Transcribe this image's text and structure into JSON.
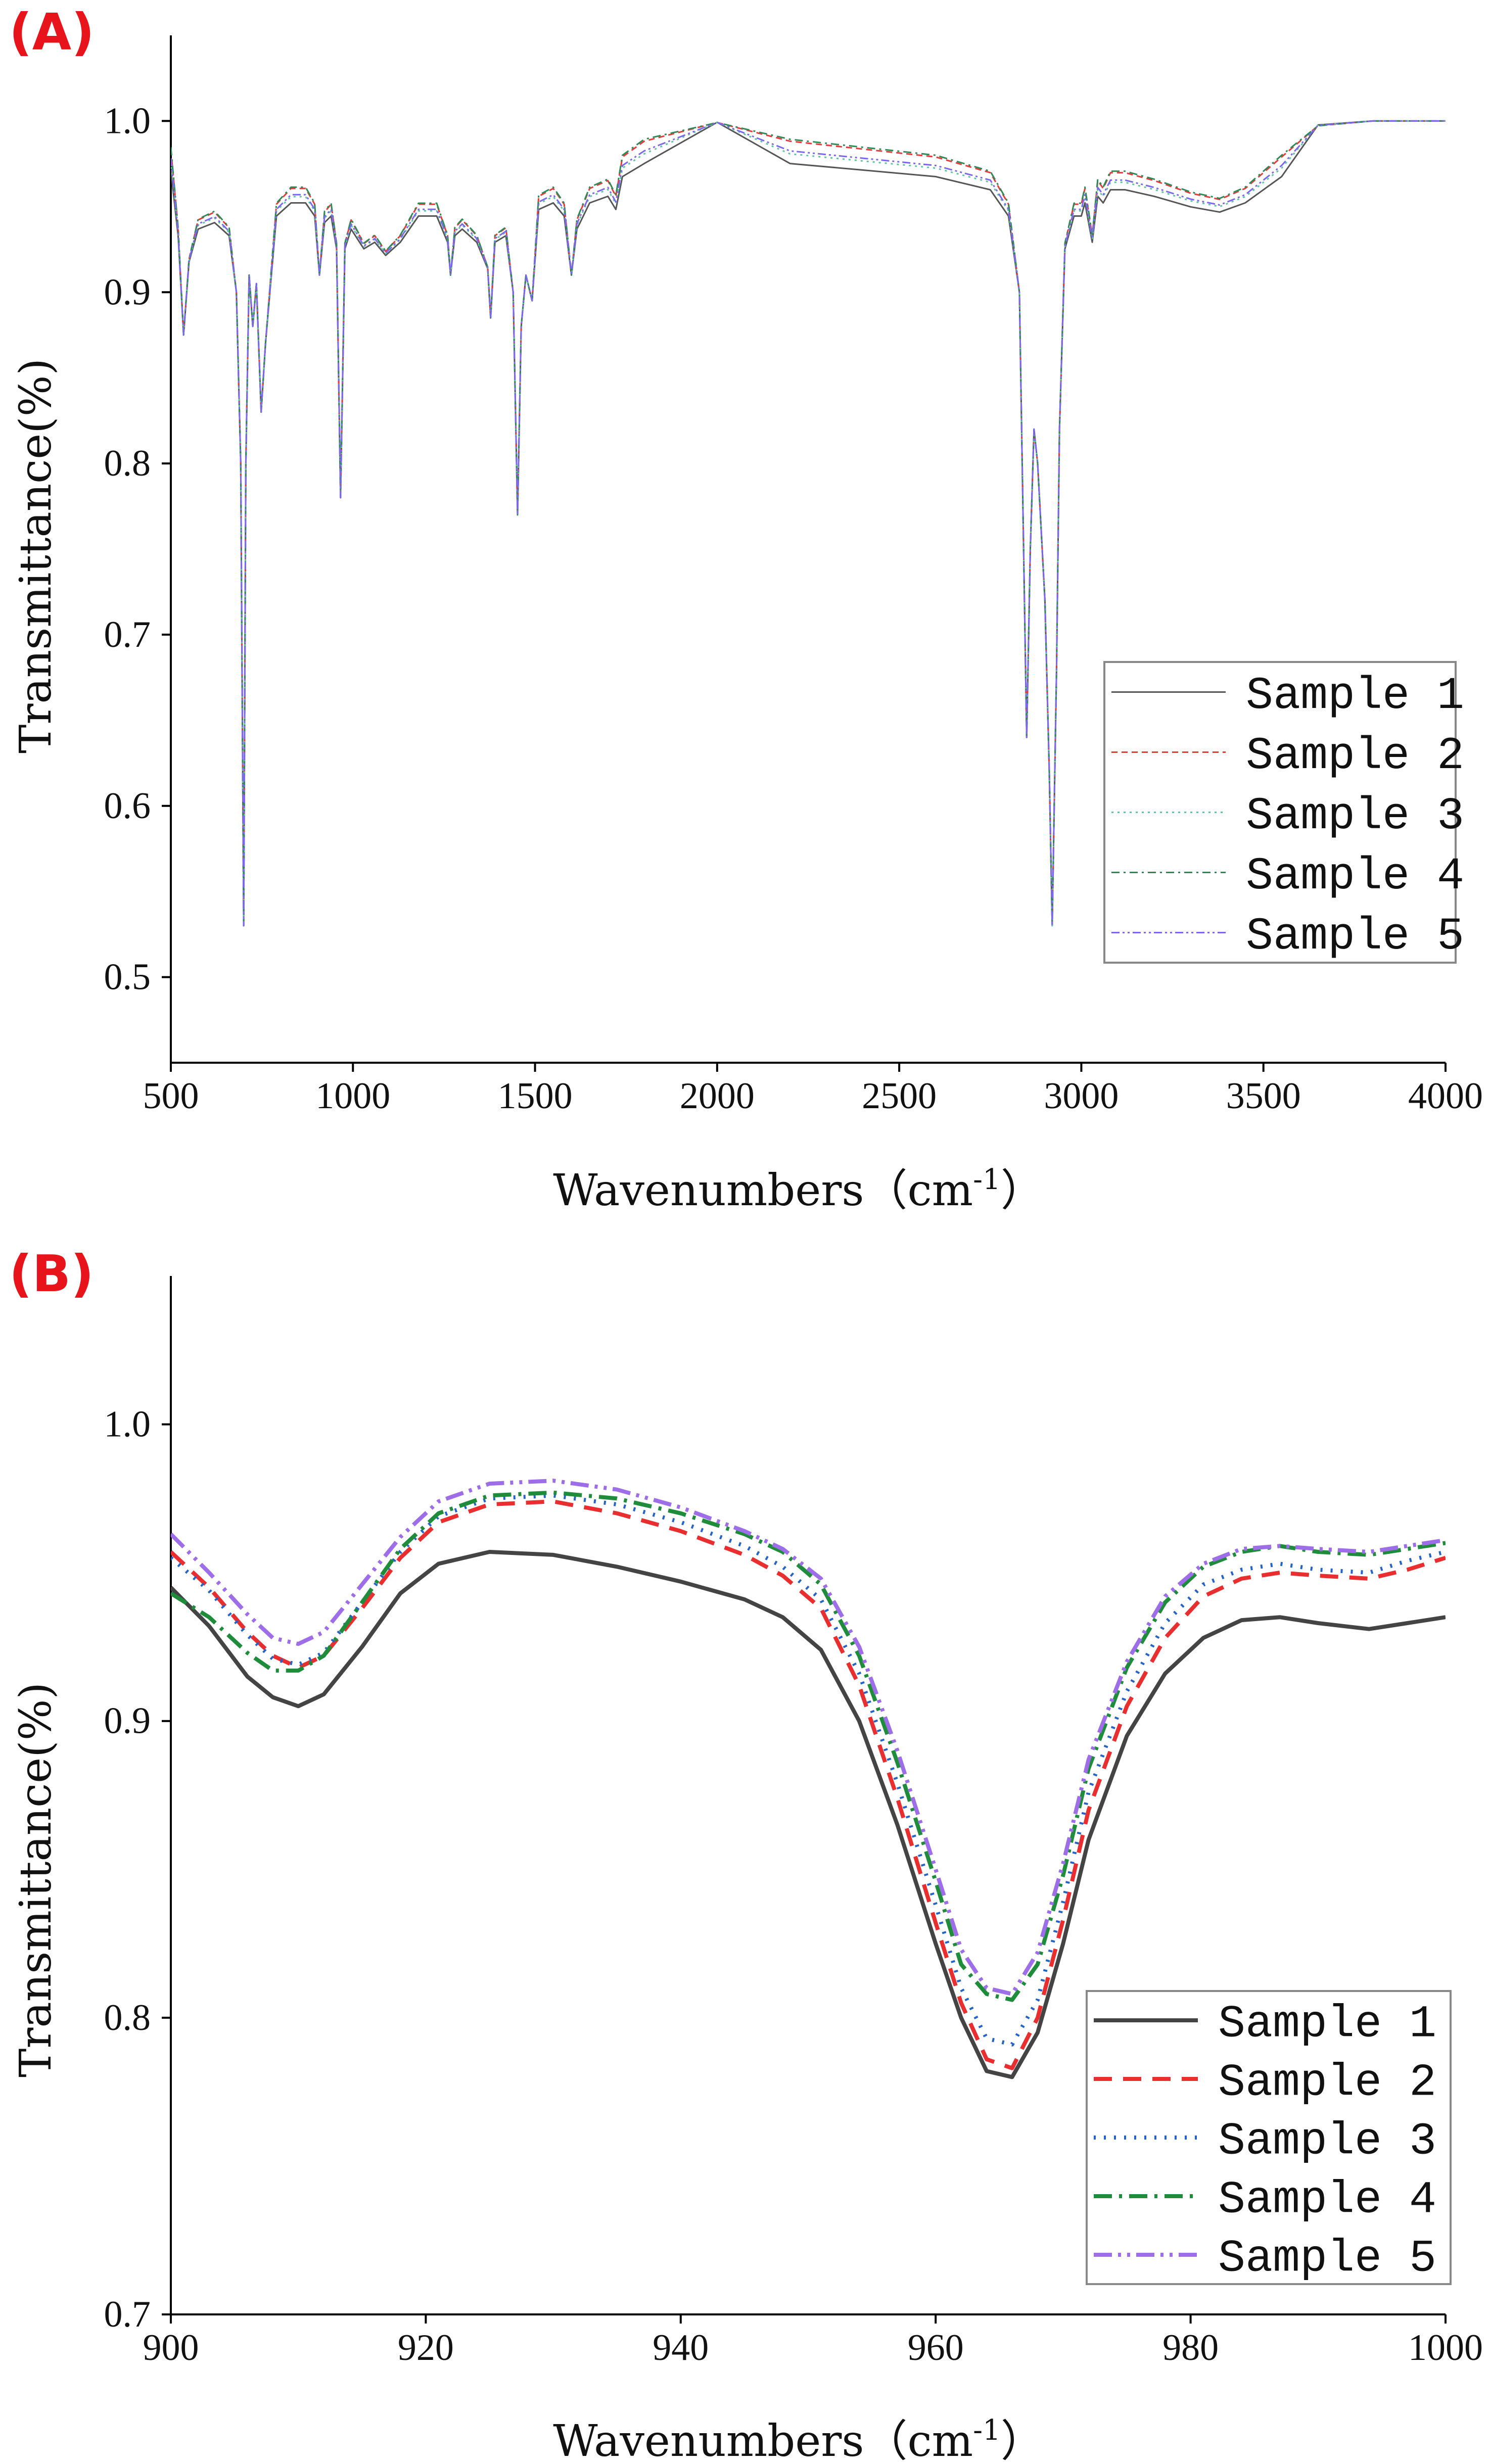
{
  "chart_data": [
    {
      "type": "line",
      "panel_label": "(A)",
      "xlabel_main": "Wavenumbers（cm",
      "xlabel_sup": "-1",
      "xlabel_close": "）",
      "ylabel": "Transmittance(%)",
      "xlim": [
        500,
        4000
      ],
      "ylim": [
        0.45,
        1.05
      ],
      "xticks": [
        "500",
        "1000",
        "1500",
        "2000",
        "2500",
        "3000",
        "3500",
        "4000"
      ],
      "xtick_values": [
        500,
        1000,
        1500,
        2000,
        2500,
        3000,
        3500,
        4000
      ],
      "yticks": [
        "0.5",
        "0.6",
        "0.7",
        "0.8",
        "0.9",
        "1.0"
      ],
      "ytick_values": [
        0.5,
        0.6,
        0.7,
        0.8,
        0.9,
        1.0
      ],
      "legend_position": "bottom-right",
      "series": [
        {
          "name": "Sample 1",
          "color": "#555555",
          "dash": "",
          "offset": -0.035
        },
        {
          "name": "Sample 2",
          "color": "#e83a3a",
          "dash": "12,8",
          "offset": -0.012
        },
        {
          "name": "Sample 3",
          "color": "#5cc6a0",
          "dash": "4,8",
          "offset": -0.025
        },
        {
          "name": "Sample 4",
          "color": "#2e8b57",
          "dash": "16,8,4,8",
          "offset": -0.01
        },
        {
          "name": "Sample 5",
          "color": "#7b68ee",
          "dash": "16,6,4,6,4,6",
          "offset": -0.022
        }
      ],
      "base_curve": [
        [
          500,
          0.99
        ],
        [
          520,
          0.94
        ],
        [
          535,
          0.875
        ],
        [
          550,
          0.92
        ],
        [
          575,
          0.945
        ],
        [
          620,
          0.95
        ],
        [
          660,
          0.94
        ],
        [
          680,
          0.9
        ],
        [
          692,
          0.8
        ],
        [
          700,
          0.53
        ],
        [
          706,
          0.8
        ],
        [
          715,
          0.91
        ],
        [
          725,
          0.88
        ],
        [
          735,
          0.905
        ],
        [
          748,
          0.83
        ],
        [
          760,
          0.87
        ],
        [
          790,
          0.955
        ],
        [
          830,
          0.965
        ],
        [
          870,
          0.965
        ],
        [
          895,
          0.955
        ],
        [
          908,
          0.91
        ],
        [
          922,
          0.95
        ],
        [
          940,
          0.955
        ],
        [
          955,
          0.93
        ],
        [
          966,
          0.78
        ],
        [
          978,
          0.93
        ],
        [
          995,
          0.945
        ],
        [
          1030,
          0.93
        ],
        [
          1060,
          0.935
        ],
        [
          1090,
          0.925
        ],
        [
          1130,
          0.935
        ],
        [
          1180,
          0.955
        ],
        [
          1230,
          0.955
        ],
        [
          1260,
          0.935
        ],
        [
          1268,
          0.91
        ],
        [
          1280,
          0.94
        ],
        [
          1300,
          0.945
        ],
        [
          1340,
          0.935
        ],
        [
          1370,
          0.915
        ],
        [
          1378,
          0.885
        ],
        [
          1390,
          0.935
        ],
        [
          1420,
          0.94
        ],
        [
          1440,
          0.9
        ],
        [
          1452,
          0.77
        ],
        [
          1462,
          0.88
        ],
        [
          1475,
          0.91
        ],
        [
          1492,
          0.895
        ],
        [
          1510,
          0.96
        ],
        [
          1550,
          0.965
        ],
        [
          1580,
          0.955
        ],
        [
          1600,
          0.91
        ],
        [
          1615,
          0.945
        ],
        [
          1650,
          0.965
        ],
        [
          1700,
          0.97
        ],
        [
          1722,
          0.96
        ],
        [
          1740,
          0.985
        ],
        [
          1800,
          0.995
        ],
        [
          2000,
          0.999
        ],
        [
          2200,
          0.995
        ],
        [
          2400,
          0.99
        ],
        [
          2600,
          0.985
        ],
        [
          2750,
          0.975
        ],
        [
          2800,
          0.955
        ],
        [
          2830,
          0.9
        ],
        [
          2850,
          0.64
        ],
        [
          2860,
          0.75
        ],
        [
          2870,
          0.82
        ],
        [
          2880,
          0.8
        ],
        [
          2900,
          0.72
        ],
        [
          2912,
          0.62
        ],
        [
          2920,
          0.53
        ],
        [
          2932,
          0.68
        ],
        [
          2940,
          0.82
        ],
        [
          2955,
          0.93
        ],
        [
          2980,
          0.955
        ],
        [
          3000,
          0.955
        ],
        [
          3010,
          0.965
        ],
        [
          3030,
          0.935
        ],
        [
          3045,
          0.97
        ],
        [
          3060,
          0.965
        ],
        [
          3080,
          0.975
        ],
        [
          3120,
          0.975
        ],
        [
          3200,
          0.97
        ],
        [
          3300,
          0.962
        ],
        [
          3380,
          0.958
        ],
        [
          3450,
          0.965
        ],
        [
          3550,
          0.985
        ],
        [
          3650,
          0.997
        ],
        [
          3800,
          1.0
        ],
        [
          4000,
          1.0
        ]
      ]
    },
    {
      "type": "line",
      "panel_label": "(B)",
      "xlabel_main": "Wavenumbers（cm",
      "xlabel_sup": "-1",
      "xlabel_close": "）",
      "ylabel": "Transmittance(%)",
      "xlim": [
        900,
        1000
      ],
      "ylim": [
        0.7,
        1.05
      ],
      "xticks": [
        "900",
        "920",
        "940",
        "960",
        "980",
        "1000"
      ],
      "xtick_values": [
        900,
        920,
        940,
        960,
        980,
        1000
      ],
      "yticks": [
        "0.7",
        "0.8",
        "0.9",
        "1.0"
      ],
      "ytick_values": [
        0.7,
        0.8,
        0.9,
        1.0
      ],
      "legend_position": "bottom-right",
      "series": [
        {
          "name": "Sample 1",
          "color": "#444444",
          "dash": "",
          "x": [
            900,
            903,
            906,
            908,
            910,
            912,
            915,
            918,
            921,
            925,
            930,
            935,
            940,
            945,
            948,
            951,
            954,
            957,
            960,
            962,
            964,
            966,
            968,
            970,
            972,
            975,
            978,
            981,
            984,
            987,
            990,
            994,
            997,
            1000
          ],
          "y": [
            0.945,
            0.932,
            0.915,
            0.908,
            0.905,
            0.909,
            0.925,
            0.943,
            0.953,
            0.957,
            0.956,
            0.952,
            0.947,
            0.941,
            0.935,
            0.924,
            0.9,
            0.865,
            0.825,
            0.8,
            0.782,
            0.78,
            0.795,
            0.825,
            0.86,
            0.895,
            0.916,
            0.928,
            0.934,
            0.935,
            0.933,
            0.931,
            0.933,
            0.935
          ]
        },
        {
          "name": "Sample 2",
          "color": "#e82e2e",
          "dash": "36,22",
          "x": [
            900,
            903,
            906,
            908,
            910,
            912,
            915,
            918,
            921,
            925,
            930,
            935,
            940,
            945,
            948,
            951,
            954,
            957,
            960,
            962,
            964,
            966,
            968,
            970,
            972,
            975,
            978,
            981,
            984,
            987,
            990,
            994,
            997,
            1000
          ],
          "y": [
            0.957,
            0.945,
            0.93,
            0.922,
            0.918,
            0.922,
            0.938,
            0.955,
            0.967,
            0.973,
            0.974,
            0.97,
            0.964,
            0.956,
            0.949,
            0.938,
            0.912,
            0.874,
            0.832,
            0.805,
            0.786,
            0.783,
            0.8,
            0.833,
            0.87,
            0.905,
            0.928,
            0.942,
            0.948,
            0.95,
            0.949,
            0.948,
            0.951,
            0.955
          ]
        },
        {
          "name": "Sample 3",
          "color": "#2563c9",
          "dash": "4,16",
          "x": [
            900,
            903,
            906,
            908,
            910,
            912,
            915,
            918,
            921,
            925,
            930,
            935,
            940,
            945,
            948,
            951,
            954,
            957,
            960,
            962,
            964,
            966,
            968,
            970,
            972,
            975,
            978,
            981,
            984,
            987,
            990,
            994,
            997,
            1000
          ],
          "y": [
            0.955,
            0.944,
            0.929,
            0.921,
            0.919,
            0.923,
            0.94,
            0.957,
            0.969,
            0.975,
            0.976,
            0.973,
            0.967,
            0.959,
            0.952,
            0.941,
            0.916,
            0.879,
            0.838,
            0.81,
            0.793,
            0.791,
            0.806,
            0.839,
            0.876,
            0.91,
            0.933,
            0.946,
            0.951,
            0.953,
            0.951,
            0.95,
            0.954,
            0.957
          ]
        },
        {
          "name": "Sample 4",
          "color": "#1e8c3a",
          "dash": "36,14,6,14",
          "x": [
            900,
            903,
            906,
            908,
            910,
            912,
            915,
            918,
            921,
            925,
            930,
            935,
            940,
            945,
            948,
            951,
            954,
            957,
            960,
            962,
            964,
            966,
            968,
            970,
            972,
            975,
            978,
            981,
            984,
            987,
            990,
            994,
            997,
            1000
          ],
          "y": [
            0.943,
            0.935,
            0.923,
            0.917,
            0.917,
            0.922,
            0.94,
            0.958,
            0.97,
            0.976,
            0.977,
            0.975,
            0.97,
            0.963,
            0.957,
            0.946,
            0.922,
            0.886,
            0.846,
            0.818,
            0.808,
            0.806,
            0.818,
            0.848,
            0.884,
            0.918,
            0.94,
            0.952,
            0.957,
            0.959,
            0.957,
            0.956,
            0.958,
            0.96
          ]
        },
        {
          "name": "Sample 5",
          "color": "#9d6ee8",
          "dash": "36,12,6,12,6,12",
          "x": [
            900,
            903,
            906,
            908,
            910,
            912,
            915,
            918,
            921,
            925,
            930,
            935,
            940,
            945,
            948,
            951,
            954,
            957,
            960,
            962,
            964,
            966,
            968,
            970,
            972,
            975,
            978,
            981,
            984,
            987,
            990,
            994,
            997,
            1000
          ],
          "y": [
            0.963,
            0.95,
            0.936,
            0.928,
            0.926,
            0.93,
            0.946,
            0.962,
            0.974,
            0.98,
            0.981,
            0.978,
            0.972,
            0.964,
            0.958,
            0.948,
            0.925,
            0.89,
            0.85,
            0.823,
            0.81,
            0.808,
            0.822,
            0.852,
            0.887,
            0.92,
            0.942,
            0.953,
            0.958,
            0.959,
            0.958,
            0.957,
            0.959,
            0.961
          ]
        }
      ]
    }
  ]
}
